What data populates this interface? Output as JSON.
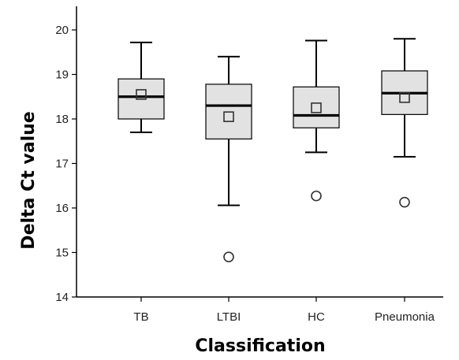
{
  "chart_data": {
    "type": "box",
    "xlabel": "Classification",
    "ylabel": "Delta Ct value",
    "ylim": [
      14,
      20.6
    ],
    "yticks": [
      14,
      15,
      16,
      17,
      18,
      19,
      20
    ],
    "categories": [
      "TB",
      "LTBI",
      "HC",
      "Pneumonia"
    ],
    "boxes": [
      {
        "category": "TB",
        "whisker_low": 17.7,
        "q1": 18.0,
        "median": 18.5,
        "q3": 18.9,
        "whisker_high": 19.72,
        "mean": 18.55,
        "outliers": []
      },
      {
        "category": "LTBI",
        "whisker_low": 16.06,
        "q1": 17.55,
        "median": 18.3,
        "q3": 18.78,
        "whisker_high": 19.4,
        "mean": 18.05,
        "outliers": [
          14.9
        ]
      },
      {
        "category": "HC",
        "whisker_low": 17.25,
        "q1": 17.8,
        "median": 18.08,
        "q3": 18.72,
        "whisker_high": 19.76,
        "mean": 18.25,
        "outliers": [
          16.27
        ]
      },
      {
        "category": "Pneumonia",
        "whisker_low": 17.15,
        "q1": 18.1,
        "median": 18.58,
        "q3": 19.08,
        "whisker_high": 19.8,
        "mean": 18.48,
        "outliers": [
          16.13
        ]
      }
    ],
    "grid": false,
    "colors": {
      "box_fill": "#e2e2e2",
      "stroke": "#000000",
      "marker_stroke": "#333333"
    }
  }
}
